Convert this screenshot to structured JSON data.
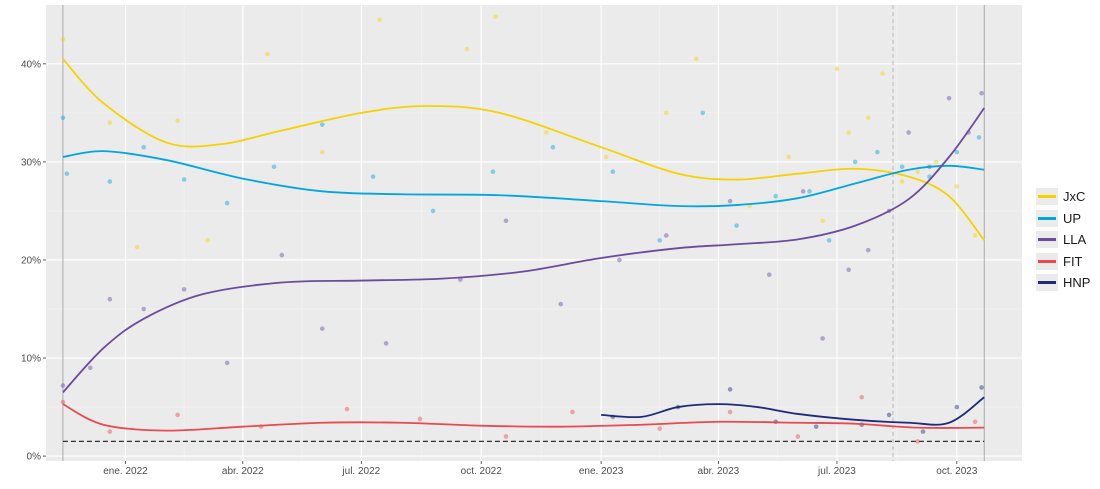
{
  "chart_data": {
    "type": "scatter",
    "x_type": "date",
    "xlim": [
      "2021-11-01",
      "2023-11-20"
    ],
    "ylim": [
      -0.5,
      46
    ],
    "x_ticks": [
      {
        "date": "2022-01-01",
        "label": "ene. 2022"
      },
      {
        "date": "2022-04-01",
        "label": "abr. 2022"
      },
      {
        "date": "2022-07-01",
        "label": "jul. 2022"
      },
      {
        "date": "2022-10-01",
        "label": "oct. 2022"
      },
      {
        "date": "2023-01-01",
        "label": "ene. 2023"
      },
      {
        "date": "2023-04-01",
        "label": "abr. 2023"
      },
      {
        "date": "2023-07-01",
        "label": "jul. 2023"
      },
      {
        "date": "2023-10-01",
        "label": "oct. 2023"
      }
    ],
    "y_ticks": [
      {
        "value": 0,
        "label": "0%"
      },
      {
        "value": 10,
        "label": "10%"
      },
      {
        "value": 20,
        "label": "20%"
      },
      {
        "value": 30,
        "label": "30%"
      },
      {
        "value": 40,
        "label": "40%"
      }
    ],
    "grid": true,
    "legend_position": "right",
    "reference_lines": {
      "horizontal_dashed": 1.5,
      "vertical_solid": [
        "2021-11-14",
        "2023-10-22"
      ],
      "vertical_dashed": "2023-08-13"
    },
    "series": [
      {
        "name": "JxC",
        "color": "#f5d200",
        "trend": [
          [
            "2021-11-14",
            40.5
          ],
          [
            "2021-12-15",
            36
          ],
          [
            "2022-02-01",
            32
          ],
          [
            "2022-03-15",
            31.8
          ],
          [
            "2022-05-01",
            33.2
          ],
          [
            "2022-07-01",
            35
          ],
          [
            "2022-08-20",
            35.7
          ],
          [
            "2022-10-15",
            35
          ],
          [
            "2023-01-01",
            31.5
          ],
          [
            "2023-03-01",
            28.8
          ],
          [
            "2023-04-15",
            28.2
          ],
          [
            "2023-06-01",
            28.8
          ],
          [
            "2023-07-15",
            29.3
          ],
          [
            "2023-08-25",
            28.5
          ],
          [
            "2023-09-25",
            26.5
          ],
          [
            "2023-10-22",
            22
          ]
        ],
        "points": [
          [
            "2021-11-14",
            42.5
          ],
          [
            "2021-12-20",
            34
          ],
          [
            "2022-01-10",
            21.3
          ],
          [
            "2022-02-10",
            34.2
          ],
          [
            "2022-03-05",
            22
          ],
          [
            "2022-04-20",
            41
          ],
          [
            "2022-06-01",
            31
          ],
          [
            "2022-07-15",
            44.5
          ],
          [
            "2022-09-20",
            41.5
          ],
          [
            "2022-10-12",
            44.8
          ],
          [
            "2022-11-20",
            33
          ],
          [
            "2023-01-05",
            30.5
          ],
          [
            "2023-02-20",
            35
          ],
          [
            "2023-03-15",
            40.5
          ],
          [
            "2023-04-25",
            25.5
          ],
          [
            "2023-05-25",
            30.5
          ],
          [
            "2023-06-20",
            24
          ],
          [
            "2023-07-01",
            39.5
          ],
          [
            "2023-07-10",
            33
          ],
          [
            "2023-07-25",
            34.5
          ],
          [
            "2023-08-05",
            39
          ],
          [
            "2023-08-20",
            28
          ],
          [
            "2023-09-01",
            29
          ],
          [
            "2023-09-15",
            30
          ],
          [
            "2023-10-01",
            27.5
          ],
          [
            "2023-10-15",
            22.5
          ]
        ]
      },
      {
        "name": "UP",
        "color": "#00a5e3",
        "trend": [
          [
            "2021-11-14",
            30.5
          ],
          [
            "2021-12-15",
            31.1
          ],
          [
            "2022-02-01",
            30.2
          ],
          [
            "2022-04-01",
            28.3
          ],
          [
            "2022-06-01",
            27
          ],
          [
            "2022-08-01",
            26.7
          ],
          [
            "2022-10-15",
            26.6
          ],
          [
            "2023-01-01",
            26
          ],
          [
            "2023-03-01",
            25.5
          ],
          [
            "2023-04-15",
            25.6
          ],
          [
            "2023-06-01",
            26.3
          ],
          [
            "2023-07-15",
            27.8
          ],
          [
            "2023-08-25",
            29.2
          ],
          [
            "2023-09-25",
            29.6
          ],
          [
            "2023-10-22",
            29.2
          ]
        ],
        "points": [
          [
            "2021-11-14",
            34.5
          ],
          [
            "2021-11-17",
            28.8
          ],
          [
            "2021-12-20",
            28
          ],
          [
            "2022-01-15",
            31.5
          ],
          [
            "2022-02-15",
            28.2
          ],
          [
            "2022-03-20",
            25.8
          ],
          [
            "2022-04-25",
            29.5
          ],
          [
            "2022-06-01",
            33.8
          ],
          [
            "2022-07-10",
            28.5
          ],
          [
            "2022-08-25",
            25
          ],
          [
            "2022-10-10",
            29
          ],
          [
            "2022-11-25",
            31.5
          ],
          [
            "2023-01-10",
            29
          ],
          [
            "2023-02-15",
            22
          ],
          [
            "2023-03-20",
            35
          ],
          [
            "2023-04-15",
            23.5
          ],
          [
            "2023-05-15",
            26.5
          ],
          [
            "2023-06-10",
            27
          ],
          [
            "2023-06-25",
            22
          ],
          [
            "2023-07-15",
            30
          ],
          [
            "2023-08-01",
            31
          ],
          [
            "2023-08-20",
            29.5
          ],
          [
            "2023-09-10",
            28.5
          ],
          [
            "2023-10-01",
            31
          ],
          [
            "2023-10-18",
            32.5
          ]
        ]
      },
      {
        "name": "LLA",
        "color": "#6a4c9c",
        "trend": [
          [
            "2021-11-14",
            6.5
          ],
          [
            "2021-12-15",
            11
          ],
          [
            "2022-01-15",
            14
          ],
          [
            "2022-03-01",
            16.5
          ],
          [
            "2022-05-01",
            17.7
          ],
          [
            "2022-07-01",
            17.9
          ],
          [
            "2022-09-01",
            18.1
          ],
          [
            "2022-11-01",
            18.8
          ],
          [
            "2023-01-01",
            20.2
          ],
          [
            "2023-03-01",
            21.2
          ],
          [
            "2023-04-15",
            21.6
          ],
          [
            "2023-06-01",
            22.1
          ],
          [
            "2023-07-15",
            23.5
          ],
          [
            "2023-08-25",
            26.2
          ],
          [
            "2023-09-25",
            30.5
          ],
          [
            "2023-10-22",
            35.5
          ]
        ],
        "points": [
          [
            "2021-11-14",
            7.2
          ],
          [
            "2021-12-05",
            9
          ],
          [
            "2021-12-20",
            16
          ],
          [
            "2022-01-15",
            15
          ],
          [
            "2022-02-15",
            17
          ],
          [
            "2022-03-20",
            9.5
          ],
          [
            "2022-05-01",
            20.5
          ],
          [
            "2022-06-01",
            13
          ],
          [
            "2022-07-20",
            11.5
          ],
          [
            "2022-09-15",
            18
          ],
          [
            "2022-10-20",
            24
          ],
          [
            "2022-12-01",
            15.5
          ],
          [
            "2023-01-15",
            20
          ],
          [
            "2023-02-20",
            22.5
          ],
          [
            "2023-04-10",
            26
          ],
          [
            "2023-05-10",
            18.5
          ],
          [
            "2023-06-05",
            27
          ],
          [
            "2023-06-20",
            12
          ],
          [
            "2023-07-10",
            19
          ],
          [
            "2023-07-25",
            21
          ],
          [
            "2023-08-10",
            25
          ],
          [
            "2023-08-25",
            33
          ],
          [
            "2023-09-10",
            29.5
          ],
          [
            "2023-09-25",
            36.5
          ],
          [
            "2023-10-10",
            33
          ],
          [
            "2023-10-20",
            37
          ]
        ]
      },
      {
        "name": "FIT",
        "color": "#e84a50",
        "trend": [
          [
            "2021-11-14",
            5.3
          ],
          [
            "2021-12-15",
            3.2
          ],
          [
            "2022-02-01",
            2.6
          ],
          [
            "2022-04-01",
            3
          ],
          [
            "2022-06-01",
            3.4
          ],
          [
            "2022-08-01",
            3.4
          ],
          [
            "2022-10-01",
            3.1
          ],
          [
            "2022-12-01",
            3
          ],
          [
            "2023-02-01",
            3.2
          ],
          [
            "2023-04-01",
            3.5
          ],
          [
            "2023-06-01",
            3.4
          ],
          [
            "2023-07-15",
            3.3
          ],
          [
            "2023-09-01",
            2.9
          ],
          [
            "2023-10-22",
            2.9
          ]
        ],
        "points": [
          [
            "2021-11-14",
            5.5
          ],
          [
            "2021-12-20",
            2.5
          ],
          [
            "2022-02-10",
            4.2
          ],
          [
            "2022-04-15",
            3
          ],
          [
            "2022-06-20",
            4.8
          ],
          [
            "2022-08-15",
            3.8
          ],
          [
            "2022-10-20",
            2
          ],
          [
            "2022-12-10",
            4.5
          ],
          [
            "2023-02-15",
            2.8
          ],
          [
            "2023-04-10",
            4.5
          ],
          [
            "2023-06-01",
            2
          ],
          [
            "2023-07-20",
            6
          ],
          [
            "2023-09-01",
            1.5
          ],
          [
            "2023-10-15",
            3.5
          ]
        ]
      },
      {
        "name": "HNP",
        "color": "#1f2a7a",
        "trend": [
          [
            "2023-01-01",
            4.2
          ],
          [
            "2023-02-01",
            4
          ],
          [
            "2023-03-01",
            5
          ],
          [
            "2023-04-01",
            5.3
          ],
          [
            "2023-05-01",
            5
          ],
          [
            "2023-06-01",
            4.3
          ],
          [
            "2023-07-15",
            3.7
          ],
          [
            "2023-08-25",
            3.4
          ],
          [
            "2023-09-25",
            3.4
          ],
          [
            "2023-10-22",
            6
          ]
        ],
        "points": [
          [
            "2023-01-10",
            4
          ],
          [
            "2023-03-01",
            5
          ],
          [
            "2023-04-10",
            6.8
          ],
          [
            "2023-05-15",
            3.5
          ],
          [
            "2023-06-15",
            3
          ],
          [
            "2023-07-20",
            3.2
          ],
          [
            "2023-08-10",
            4.2
          ],
          [
            "2023-09-05",
            2.5
          ],
          [
            "2023-10-01",
            5
          ],
          [
            "2023-10-20",
            7
          ]
        ]
      }
    ]
  }
}
